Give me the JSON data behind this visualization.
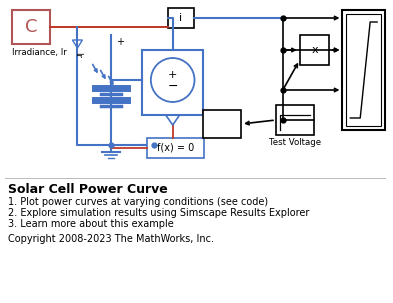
{
  "title": "Solar Cell Power Curve",
  "bullet1": "1. Plot power curves at varying conditions (see code)",
  "bullet2": "2. Explore simulation results using Simscape Results Explorer",
  "bullet3": "3. Learn more about this example",
  "copyright": "Copyright 2008-2023 The MathWorks, Inc.",
  "bg_color": "#ffffff",
  "blue": "#4472c4",
  "red_wire": "#c0392b",
  "black": "#000000",
  "c_block_color": "#b05555"
}
